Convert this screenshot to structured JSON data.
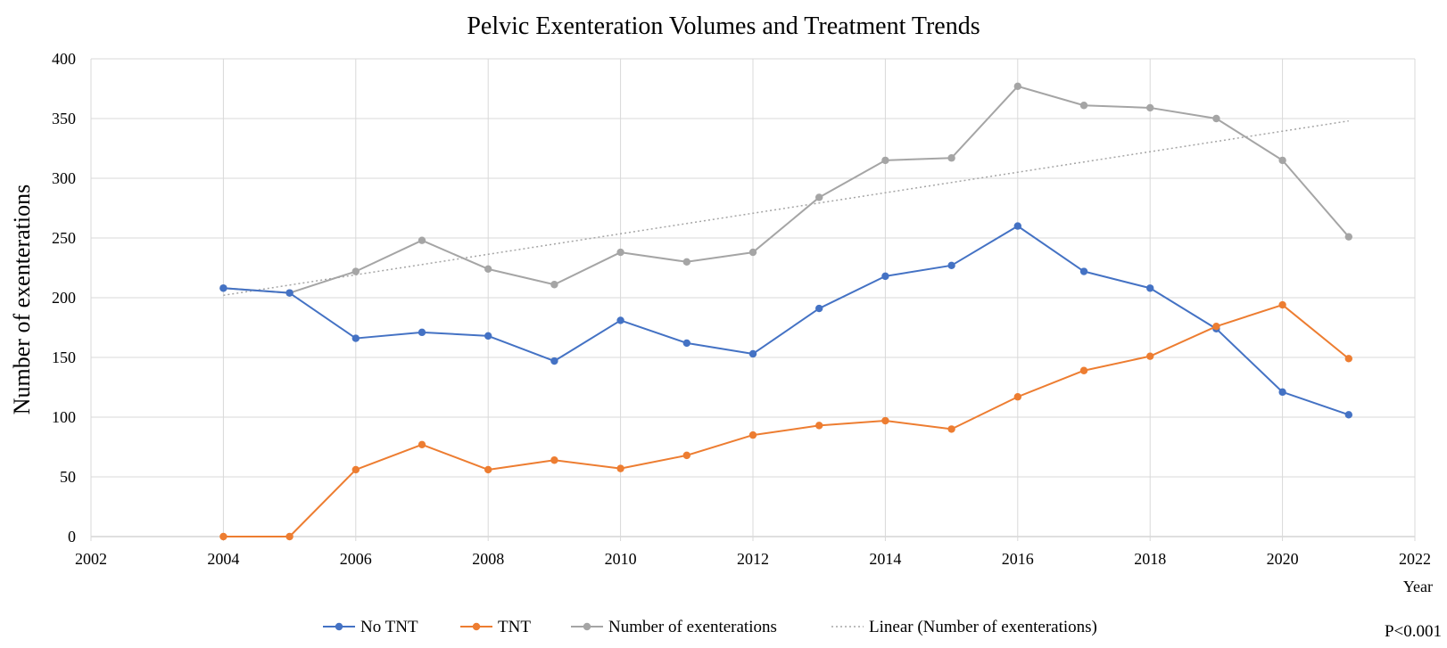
{
  "chart_data": {
    "type": "line",
    "title": "Pelvic Exenteration Volumes and Treatment Trends",
    "xlabel": "Year",
    "ylabel": "Number of exenterations",
    "xlim": [
      2002,
      2022
    ],
    "ylim": [
      0,
      400
    ],
    "x_ticks": [
      2002,
      2004,
      2006,
      2008,
      2010,
      2012,
      2014,
      2016,
      2018,
      2020,
      2022
    ],
    "y_ticks": [
      0,
      50,
      100,
      150,
      200,
      250,
      300,
      350,
      400
    ],
    "grid": true,
    "legend_position": "bottom",
    "x": [
      2004,
      2005,
      2006,
      2007,
      2008,
      2009,
      2010,
      2011,
      2012,
      2013,
      2014,
      2015,
      2016,
      2017,
      2018,
      2019,
      2020,
      2021
    ],
    "series": [
      {
        "name": "No TNT",
        "color": "#4472C4",
        "values": [
          208,
          204,
          166,
          171,
          168,
          147,
          181,
          162,
          153,
          191,
          218,
          227,
          260,
          222,
          208,
          174,
          121,
          102
        ]
      },
      {
        "name": "TNT",
        "color": "#ED7D31",
        "values": [
          0,
          0,
          56,
          77,
          56,
          64,
          57,
          68,
          85,
          93,
          97,
          90,
          117,
          139,
          151,
          176,
          194,
          149
        ]
      },
      {
        "name": "Number of exenterations",
        "color": "#A5A5A5",
        "values": [
          208,
          204,
          222,
          248,
          224,
          211,
          238,
          230,
          238,
          284,
          315,
          317,
          377,
          361,
          359,
          350,
          315,
          251
        ]
      }
    ],
    "trendline": {
      "name": "Linear (Number of exenterations)",
      "color": "#A5A5A5",
      "style": "dotted",
      "x": [
        2004,
        2021
      ],
      "y": [
        202,
        348
      ]
    },
    "annotation": "P<0.001"
  }
}
